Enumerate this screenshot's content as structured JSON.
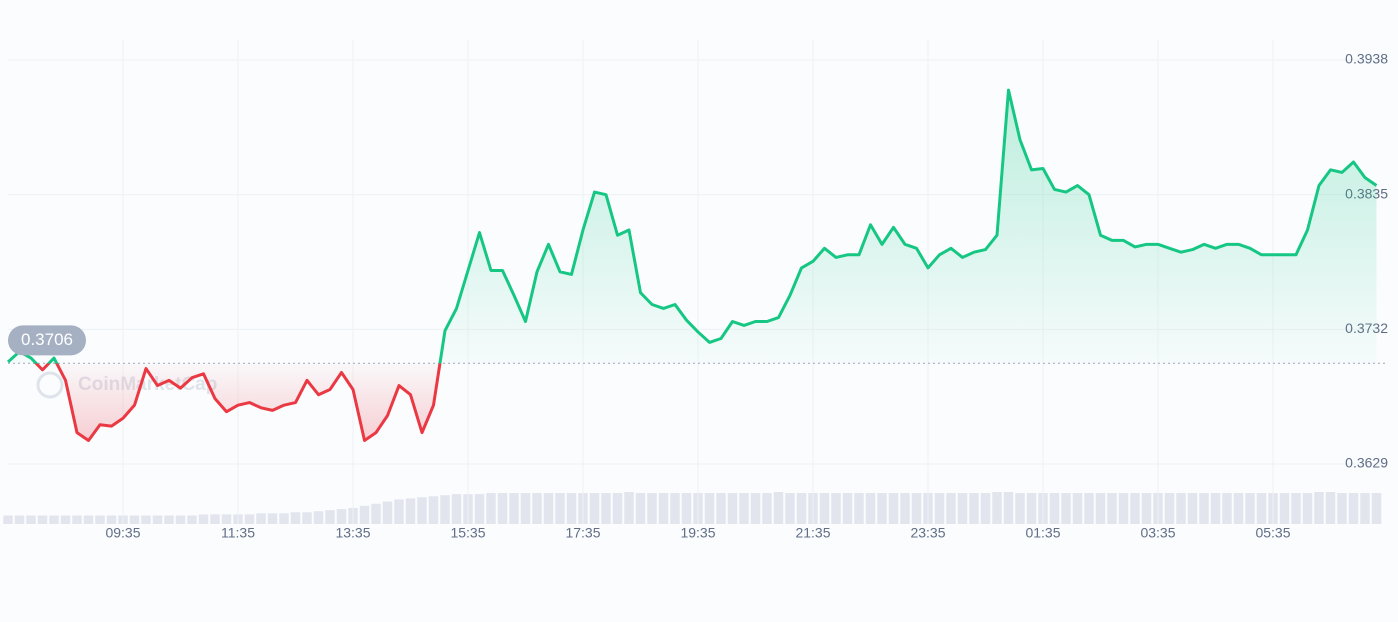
{
  "chart_data": {
    "type": "line",
    "watermark": "CoinMarketCap",
    "reference_value": 0.3706,
    "categories": [
      null,
      null,
      null,
      null,
      null,
      null,
      null,
      null,
      null,
      null,
      "09:35",
      null,
      null,
      null,
      null,
      null,
      null,
      null,
      null,
      null,
      "11:35",
      null,
      null,
      null,
      null,
      null,
      null,
      null,
      null,
      null,
      "13:35",
      null,
      null,
      null,
      null,
      null,
      null,
      null,
      null,
      null,
      "15:35",
      null,
      null,
      null,
      null,
      null,
      null,
      null,
      null,
      null,
      "17:35",
      null,
      null,
      null,
      null,
      null,
      null,
      null,
      null,
      null,
      "19:35",
      null,
      null,
      null,
      null,
      null,
      null,
      null,
      null,
      null,
      "21:35",
      null,
      null,
      null,
      null,
      null,
      null,
      null,
      null,
      null,
      "23:35",
      null,
      null,
      null,
      null,
      null,
      null,
      null,
      null,
      null,
      "01:35",
      null,
      null,
      null,
      null,
      null,
      null,
      null,
      null,
      null,
      "03:35",
      null,
      null,
      null,
      null,
      null,
      null,
      null,
      null,
      null,
      "05:35",
      null,
      null,
      null,
      null,
      null,
      null,
      null,
      null,
      null
    ],
    "series": [
      {
        "color_up": "#16c784",
        "color_down": "#ea3943",
        "values": [
          0.3707,
          0.3715,
          0.371,
          0.3701,
          0.371,
          0.3693,
          0.3653,
          0.3647,
          0.3659,
          0.3658,
          0.3664,
          0.3674,
          0.3702,
          0.3689,
          0.3693,
          0.3687,
          0.3695,
          0.3698,
          0.3679,
          0.3669,
          0.3674,
          0.3676,
          0.3672,
          0.367,
          0.3674,
          0.3676,
          0.3693,
          0.3682,
          0.3686,
          0.3699,
          0.3686,
          0.3647,
          0.3653,
          0.3666,
          0.3689,
          0.3682,
          0.3653,
          0.3674,
          0.3731,
          0.3748,
          0.3777,
          0.3806,
          0.3777,
          0.3777,
          0.3758,
          0.3738,
          0.3776,
          0.3797,
          0.3776,
          0.3774,
          0.3808,
          0.3837,
          0.3835,
          0.3804,
          0.3808,
          0.376,
          0.3751,
          0.3748,
          0.3751,
          0.3739,
          0.373,
          0.3722,
          0.3725,
          0.3738,
          0.3735,
          0.3738,
          0.3738,
          0.3741,
          0.3758,
          0.3779,
          0.3784,
          0.3794,
          0.3787,
          0.3789,
          0.3789,
          0.3812,
          0.3797,
          0.381,
          0.3797,
          0.3794,
          0.3779,
          0.3789,
          0.3794,
          0.3787,
          0.3791,
          0.3793,
          0.3804,
          0.3915,
          0.3877,
          0.3854,
          0.3855,
          0.3839,
          0.3837,
          0.3842,
          0.3835,
          0.3804,
          0.38,
          0.38,
          0.3795,
          0.3797,
          0.3797,
          0.3794,
          0.3791,
          0.3793,
          0.3797,
          0.3794,
          0.3797,
          0.3797,
          0.3794,
          0.3789,
          0.3789,
          0.3789,
          0.3789,
          0.3808,
          0.3842,
          0.3854,
          0.3852,
          0.386,
          0.3848,
          0.3842
        ]
      }
    ],
    "volume": [
      8,
      8,
      8,
      8,
      8,
      8,
      8,
      8,
      8,
      8,
      8,
      8,
      8,
      8,
      8,
      8,
      8,
      9,
      9,
      9,
      9,
      9,
      10,
      10,
      10,
      11,
      11,
      12,
      13,
      14,
      15,
      17,
      19,
      21,
      23,
      24,
      25,
      26,
      27,
      28,
      28,
      28,
      29,
      29,
      29,
      29,
      29,
      29,
      29,
      29,
      29,
      29,
      29,
      29,
      30,
      29,
      29,
      29,
      29,
      29,
      29,
      29,
      29,
      29,
      29,
      29,
      29,
      30,
      29,
      29,
      29,
      29,
      29,
      29,
      29,
      29,
      29,
      29,
      29,
      29,
      29,
      29,
      29,
      29,
      29,
      29,
      30,
      30,
      29,
      29,
      29,
      29,
      29,
      29,
      29,
      29,
      29,
      29,
      29,
      29,
      29,
      29,
      29,
      29,
      29,
      29,
      29,
      29,
      29,
      29,
      29,
      29,
      29,
      29,
      30,
      30,
      29,
      29,
      29,
      29
    ],
    "volume_color": "#e2e5ee",
    "ylim": [
      0.3629,
      0.3938
    ],
    "yticks": [
      0.3629,
      0.3732,
      0.3835,
      0.3938
    ],
    "grid": true
  }
}
